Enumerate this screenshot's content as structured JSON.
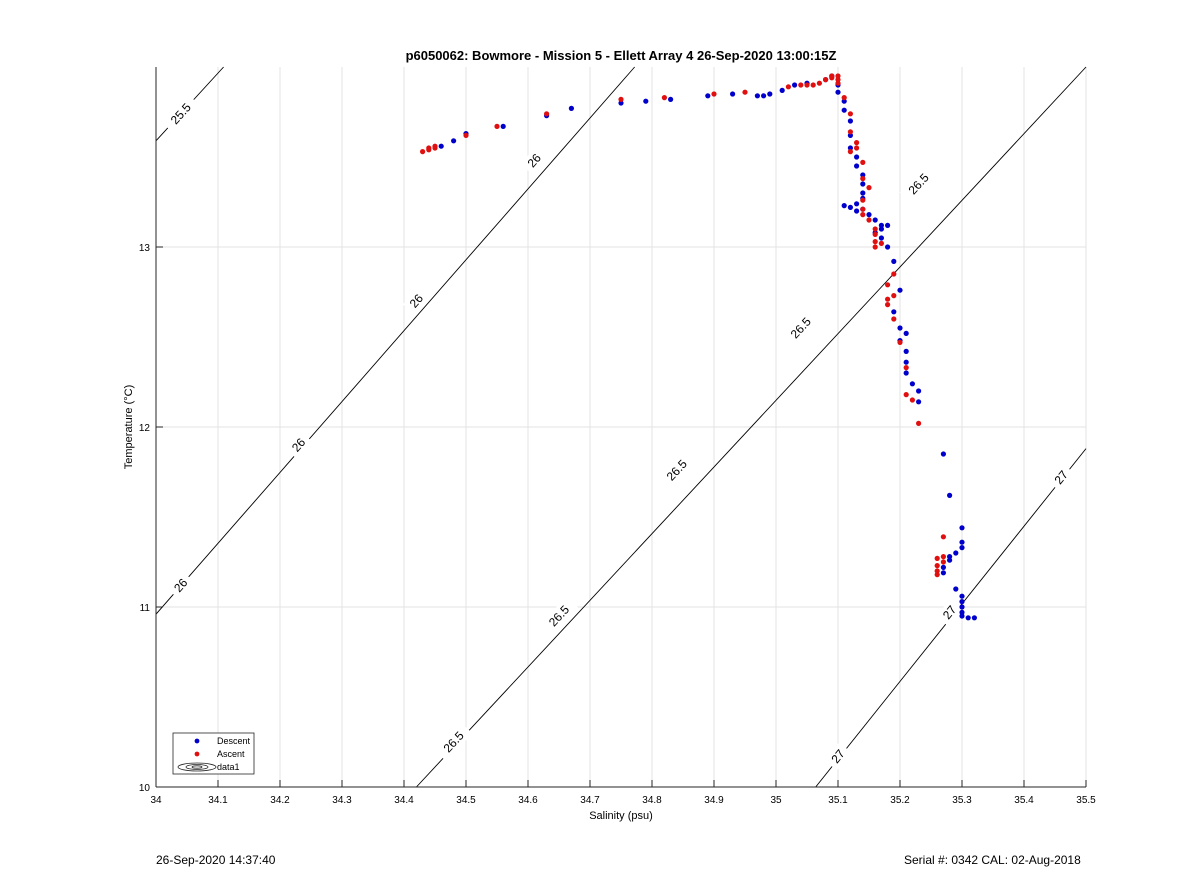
{
  "chart_data": {
    "type": "scatter",
    "title": "p6050062: Bowmore - Mission 5 - Ellett Array 4 26-Sep-2020 13:00:15Z",
    "xlabel": "Salinity (psu)",
    "ylabel": "Temperature (°C)",
    "xlim": [
      34,
      35.5
    ],
    "ylim": [
      10,
      14
    ],
    "x_ticks": [
      "34",
      "34.1",
      "34.2",
      "34.3",
      "34.4",
      "34.5",
      "34.6",
      "34.7",
      "34.8",
      "34.9",
      "35",
      "35.1",
      "35.2",
      "35.3",
      "35.4",
      "35.5"
    ],
    "y_ticks": [
      "10",
      "11",
      "12",
      "13"
    ],
    "grid": true,
    "legend_position": "bottom-left",
    "legend": [
      "Descent",
      "Ascent",
      "data1"
    ],
    "series": [
      {
        "name": "Descent",
        "color": "#0000cc",
        "points": [
          [
            34.46,
            13.56
          ],
          [
            34.48,
            13.59
          ],
          [
            34.5,
            13.63
          ],
          [
            34.56,
            13.67
          ],
          [
            34.63,
            13.73
          ],
          [
            34.67,
            13.77
          ],
          [
            34.75,
            13.8
          ],
          [
            34.79,
            13.81
          ],
          [
            34.83,
            13.82
          ],
          [
            34.89,
            13.84
          ],
          [
            34.93,
            13.85
          ],
          [
            34.97,
            13.84
          ],
          [
            34.98,
            13.84
          ],
          [
            34.99,
            13.85
          ],
          [
            35.01,
            13.87
          ],
          [
            35.03,
            13.9
          ],
          [
            35.05,
            13.91
          ],
          [
            35.08,
            13.93
          ],
          [
            35.09,
            13.95
          ],
          [
            35.1,
            13.9
          ],
          [
            35.1,
            13.86
          ],
          [
            35.11,
            13.81
          ],
          [
            35.11,
            13.76
          ],
          [
            35.12,
            13.7
          ],
          [
            35.12,
            13.62
          ],
          [
            35.12,
            13.55
          ],
          [
            35.13,
            13.5
          ],
          [
            35.13,
            13.45
          ],
          [
            35.14,
            13.4
          ],
          [
            35.14,
            13.35
          ],
          [
            35.14,
            13.3
          ],
          [
            35.14,
            13.27
          ],
          [
            35.13,
            13.24
          ],
          [
            35.11,
            13.23
          ],
          [
            35.12,
            13.22
          ],
          [
            35.13,
            13.2
          ],
          [
            35.14,
            13.21
          ],
          [
            35.15,
            13.18
          ],
          [
            35.16,
            13.15
          ],
          [
            35.17,
            13.12
          ],
          [
            35.18,
            13.12
          ],
          [
            35.17,
            13.1
          ],
          [
            35.16,
            13.08
          ],
          [
            35.17,
            13.05
          ],
          [
            35.18,
            13.0
          ],
          [
            35.19,
            12.92
          ],
          [
            35.2,
            12.76
          ],
          [
            35.19,
            12.64
          ],
          [
            35.2,
            12.55
          ],
          [
            35.21,
            12.52
          ],
          [
            35.2,
            12.48
          ],
          [
            35.21,
            12.42
          ],
          [
            35.21,
            12.36
          ],
          [
            35.21,
            12.3
          ],
          [
            35.22,
            12.24
          ],
          [
            35.23,
            12.2
          ],
          [
            35.23,
            12.14
          ],
          [
            35.27,
            11.85
          ],
          [
            35.28,
            11.62
          ],
          [
            35.3,
            11.44
          ],
          [
            35.3,
            11.36
          ],
          [
            35.3,
            11.33
          ],
          [
            35.29,
            11.3
          ],
          [
            35.28,
            11.28
          ],
          [
            35.28,
            11.26
          ],
          [
            35.27,
            11.22
          ],
          [
            35.27,
            11.19
          ],
          [
            35.29,
            11.1
          ],
          [
            35.3,
            11.06
          ],
          [
            35.3,
            11.03
          ],
          [
            35.3,
            11.0
          ],
          [
            35.3,
            10.97
          ],
          [
            35.3,
            10.95
          ],
          [
            35.31,
            10.94
          ],
          [
            35.32,
            10.94
          ]
        ]
      },
      {
        "name": "Ascent",
        "color": "#e01010",
        "points": [
          [
            34.43,
            13.53
          ],
          [
            34.44,
            13.54
          ],
          [
            34.44,
            13.55
          ],
          [
            34.45,
            13.55
          ],
          [
            34.45,
            13.56
          ],
          [
            34.5,
            13.62
          ],
          [
            34.55,
            13.67
          ],
          [
            34.63,
            13.74
          ],
          [
            34.75,
            13.82
          ],
          [
            34.82,
            13.83
          ],
          [
            34.9,
            13.85
          ],
          [
            34.95,
            13.86
          ],
          [
            35.02,
            13.89
          ],
          [
            35.04,
            13.9
          ],
          [
            35.05,
            13.9
          ],
          [
            35.06,
            13.9
          ],
          [
            35.07,
            13.91
          ],
          [
            35.08,
            13.93
          ],
          [
            35.09,
            13.94
          ],
          [
            35.09,
            13.95
          ],
          [
            35.1,
            13.95
          ],
          [
            35.1,
            13.93
          ],
          [
            35.1,
            13.91
          ],
          [
            35.11,
            13.83
          ],
          [
            35.12,
            13.74
          ],
          [
            35.12,
            13.64
          ],
          [
            35.13,
            13.58
          ],
          [
            35.13,
            13.55
          ],
          [
            35.12,
            13.53
          ],
          [
            35.14,
            13.47
          ],
          [
            35.14,
            13.38
          ],
          [
            35.15,
            13.33
          ],
          [
            35.14,
            13.26
          ],
          [
            35.14,
            13.21
          ],
          [
            35.14,
            13.18
          ],
          [
            35.15,
            13.15
          ],
          [
            35.16,
            13.1
          ],
          [
            35.16,
            13.07
          ],
          [
            35.16,
            13.03
          ],
          [
            35.17,
            13.02
          ],
          [
            35.16,
            13.0
          ],
          [
            35.19,
            12.85
          ],
          [
            35.18,
            12.79
          ],
          [
            35.19,
            12.73
          ],
          [
            35.18,
            12.71
          ],
          [
            35.18,
            12.68
          ],
          [
            35.19,
            12.6
          ],
          [
            35.2,
            12.47
          ],
          [
            35.21,
            12.33
          ],
          [
            35.21,
            12.18
          ],
          [
            35.22,
            12.15
          ],
          [
            35.23,
            12.02
          ],
          [
            35.27,
            11.39
          ],
          [
            35.27,
            11.28
          ],
          [
            35.26,
            11.27
          ],
          [
            35.27,
            11.25
          ],
          [
            35.26,
            11.23
          ],
          [
            35.26,
            11.2
          ],
          [
            35.26,
            11.18
          ]
        ]
      }
    ],
    "contours": [
      {
        "label": "25.5",
        "line": [
          [
            34.0,
            13.59
          ],
          [
            34.109,
            14.0
          ]
        ],
        "labels_at": [
          [
            34.04,
            13.74
          ]
        ]
      },
      {
        "label": "26",
        "line": [
          [
            34.0,
            10.96
          ],
          [
            34.772,
            14.0
          ]
        ],
        "labels_at": [
          [
            34.04,
            11.12
          ],
          [
            34.23,
            11.9
          ],
          [
            34.42,
            12.7
          ],
          [
            34.61,
            13.48
          ]
        ]
      },
      {
        "label": "26.5",
        "line": [
          [
            34.42,
            10.0
          ],
          [
            35.5,
            14.0
          ]
        ],
        "labels_at": [
          [
            34.48,
            10.25
          ],
          [
            34.65,
            10.95
          ],
          [
            34.84,
            11.76
          ],
          [
            35.04,
            12.55
          ],
          [
            35.23,
            13.35
          ]
        ]
      },
      {
        "label": "27",
        "line": [
          [
            35.064,
            10.0
          ],
          [
            35.5,
            11.88
          ]
        ],
        "labels_at": [
          [
            35.1,
            10.17
          ],
          [
            35.28,
            10.97
          ],
          [
            35.46,
            11.72
          ]
        ]
      }
    ]
  },
  "footer": {
    "timestamp": "26-Sep-2020 14:37:40",
    "serial": "Serial #: 0342  CAL: 02-Aug-2018"
  }
}
